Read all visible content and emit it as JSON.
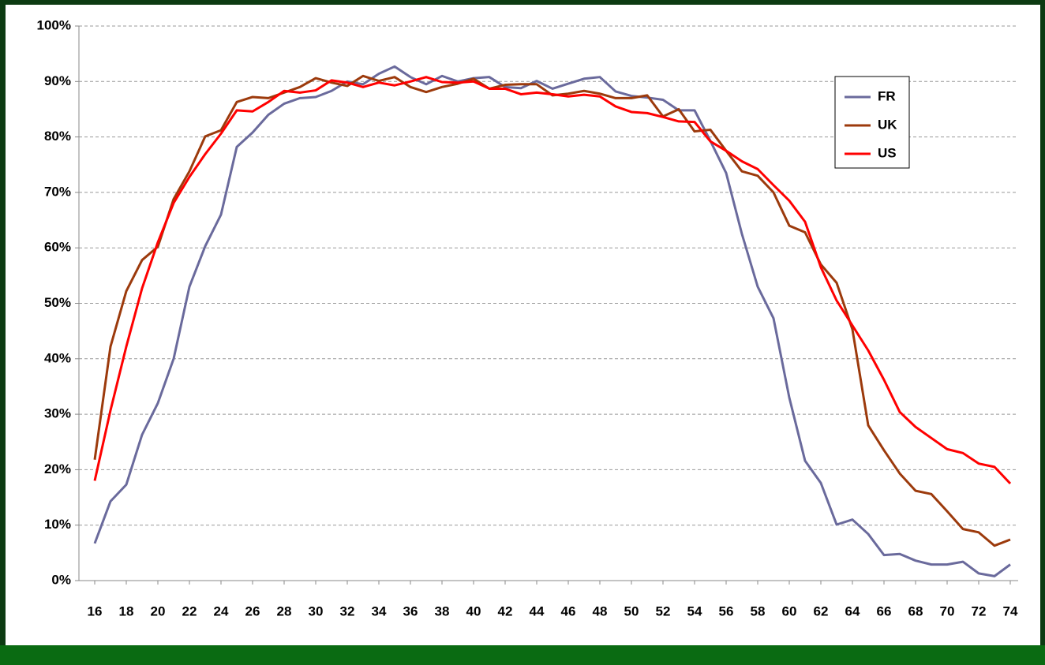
{
  "chart_data": {
    "type": "line",
    "x": [
      16,
      17,
      18,
      19,
      20,
      21,
      22,
      23,
      24,
      25,
      26,
      27,
      28,
      29,
      30,
      31,
      32,
      33,
      34,
      35,
      36,
      37,
      38,
      39,
      40,
      41,
      42,
      43,
      44,
      45,
      46,
      47,
      48,
      49,
      50,
      51,
      52,
      53,
      54,
      55,
      56,
      57,
      58,
      59,
      60,
      61,
      62,
      63,
      64,
      65,
      66,
      67,
      68,
      69,
      70,
      71,
      72,
      73,
      74
    ],
    "series": [
      {
        "name": "FR",
        "color": "#6a6a9c",
        "values": [
          6.7,
          14.3,
          17.3,
          26.3,
          32,
          40,
          53,
          60.3,
          66,
          78.2,
          80.8,
          84,
          86,
          87,
          87.2,
          88.3,
          90,
          89.5,
          91.4,
          92.7,
          90.8,
          89.5,
          91,
          90,
          90.6,
          90.8,
          89,
          88.8,
          90.1,
          88.7,
          89.6,
          90.5,
          90.8,
          88.2,
          87.4,
          87.1,
          86.7,
          84.8,
          84.8,
          79.3,
          73.5,
          62.5,
          53,
          47.3,
          33,
          21.6,
          17.6,
          10.1,
          11,
          8.4,
          4.6,
          4.8,
          3.6,
          2.9,
          2.9,
          3.4,
          1.3,
          0.8,
          2.9
        ]
      },
      {
        "name": "UK",
        "color": "#9c3a0c",
        "values": [
          21.8,
          42.2,
          52.2,
          57.8,
          60.2,
          68.8,
          73.8,
          80.1,
          81.2,
          86.3,
          87.2,
          87,
          88,
          89,
          90.6,
          89.8,
          89.2,
          91,
          90.1,
          90.8,
          89,
          88.1,
          89,
          89.6,
          90.5,
          88.7,
          89.4,
          89.5,
          89.5,
          87.5,
          87.8,
          88.3,
          87.8,
          87,
          87,
          87.5,
          83.7,
          85,
          81,
          81.3,
          77.5,
          73.8,
          73,
          70,
          64,
          62.8,
          57,
          53.7,
          45.3,
          28,
          23.5,
          19.3,
          16.2,
          15.6,
          12.5,
          9.3,
          8.7,
          6.3,
          7.4
        ]
      },
      {
        "name": "US",
        "color": "#ff0000",
        "values": [
          18,
          30.7,
          42.2,
          52.7,
          61,
          68.1,
          72.8,
          76.9,
          80.6,
          84.8,
          84.6,
          86.3,
          88.3,
          88,
          88.4,
          90.2,
          89.8,
          89,
          89.8,
          89.3,
          90,
          90.8,
          89.9,
          89.8,
          90,
          88.7,
          88.7,
          87.7,
          88,
          87.7,
          87.3,
          87.6,
          87.3,
          85.5,
          84.5,
          84.3,
          83.6,
          82.8,
          82.7,
          79.2,
          77.5,
          75.6,
          74.2,
          71.3,
          68.5,
          64.7,
          56.5,
          50.5,
          46,
          41.5,
          36.2,
          30.4,
          27.7,
          25.7,
          23.7,
          23,
          21.1,
          20.5,
          17.5
        ]
      }
    ],
    "xlim": [
      15,
      74.5
    ],
    "xticks": [
      16,
      18,
      20,
      22,
      24,
      26,
      28,
      30,
      32,
      34,
      36,
      38,
      40,
      42,
      44,
      46,
      48,
      50,
      52,
      54,
      56,
      58,
      60,
      62,
      64,
      66,
      68,
      70,
      72,
      74
    ],
    "ylim": [
      0,
      100
    ],
    "yticks": [
      {
        "value": 0,
        "label": "0%"
      },
      {
        "value": 10,
        "label": "10%"
      },
      {
        "value": 20,
        "label": "20%"
      },
      {
        "value": 30,
        "label": "30%"
      },
      {
        "value": 40,
        "label": "40%"
      },
      {
        "value": 50,
        "label": "50%"
      },
      {
        "value": 60,
        "label": "60%"
      },
      {
        "value": 70,
        "label": "70%"
      },
      {
        "value": 80,
        "label": "80%"
      },
      {
        "value": 90,
        "label": "90%"
      },
      {
        "value": 100,
        "label": "100%"
      }
    ],
    "grid": true,
    "legend": "upper right"
  }
}
